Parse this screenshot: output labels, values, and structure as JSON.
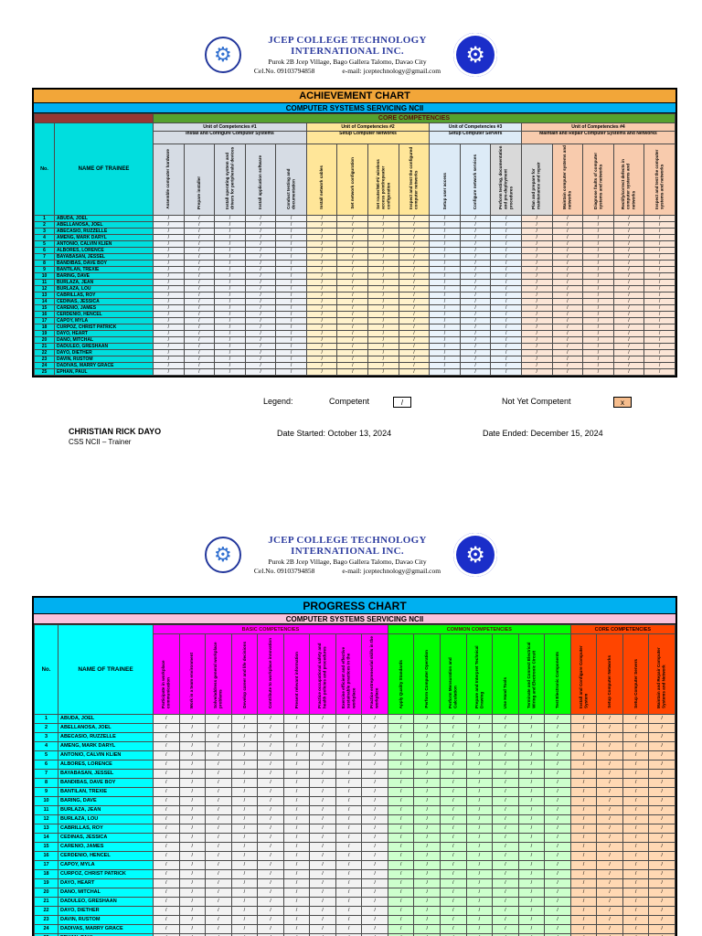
{
  "header": {
    "college_line1": "JCEP COLLEGE TECHNOLOGY",
    "college_line2": "INTERNATIONAL INC.",
    "address": "Purok 2B Jcep Village, Bago Gallera Talomo, Davao City",
    "phone": "Cel.No. 09103794858",
    "email": "e-mail: jceptechnology@gmail.com"
  },
  "trainees": [
    "ABUDA, JOEL",
    "ABELLANOSA, JOEL",
    "ABECASIO, RUZZELLE",
    "AMENG, MARK DARYL",
    "ANTONIO, CALVIN KLIEN",
    "ALBORES, LORENCE",
    "BAYABASAN, JESSEL",
    "BANDIBAS, DAVE BOY",
    "BANTILAN, TREXIE",
    "BARING, DAVE",
    "BURLAZA, JEAN",
    "BURLAZA, LOU",
    "CABRILLAS, ROY",
    "CEDINAS, JESSICA",
    "CARENIO, JAMES",
    "CERDENIO, HENCEL",
    "CAPOY, MYLA",
    "CURPOZ, CHRIST PATRICK",
    "DAYO, HEART",
    "DANO, MITCHAL",
    "DADULEO, GRESHAAN",
    "DAYO, DIETHER",
    "DAVIN, RUSTOM",
    "DADIVAS, MARRY GRACE",
    "EPHAN, PAUL"
  ],
  "achievement_chart": {
    "title": "ACHIEVEMENT CHART",
    "subtitle": "COMPUTER SYSTEMS SERVICING NCII",
    "section": "CORE COMPETENCIES",
    "no_header": "No.",
    "name_header": "NAME OF TRAINEE",
    "mark": "/",
    "title_bg": "#f2a639",
    "sub_bg": "#00b0f0",
    "section_bg": "#55a12e",
    "section_color": "#5c0a0a",
    "corner_bg": "#963634",
    "name_bg": "#00dede",
    "units": [
      {
        "label": "Unit of Competencies #1",
        "sublabel": "Install and Configure Computer Systems",
        "head_bg": "#d6dce4",
        "body_bg": "#eef1f6",
        "columns": [
          "Assemble computer hardware",
          "Prepare installer",
          "Install operating system and drivers for peripherals/ devices",
          "Install application software",
          "Conduct testing and documentation"
        ]
      },
      {
        "label": "Unit of Competencies #2",
        "sublabel": "Setup Computer Networks",
        "head_bg": "#ffe699",
        "body_bg": "#fff2cc",
        "columns": [
          "Install network cables",
          "Set network configuration",
          "Set router/Wi-Fi/ wireless access point/repeater configuration",
          "Inspect and test the configured computer networks"
        ]
      },
      {
        "label": "Unit of Competencies #3",
        "sublabel": "Setup Computer Servers",
        "head_bg": "#ddebf7",
        "body_bg": "#eaf3fb",
        "head_col_bgs": [
          "#ddebf7",
          "#ddebf7",
          "#d9d9d9"
        ],
        "columns": [
          "Setup user access",
          "Configure network services",
          "Perform testing, documentation and pre-deployment procedures"
        ]
      },
      {
        "label": "Unit of Competencies #4",
        "sublabel": "Maintain and Repair Computer Systems and Networks",
        "head_bg": "#f8cbad",
        "body_bg": "#fbe5d6",
        "head_col_bgs": [
          "#d9d9d9",
          "#f8cbad",
          "#f8cbad",
          "#f8cbad",
          "#f8cbad"
        ],
        "columns": [
          "Plan and prepare for maintenance and repair",
          "Maintain computer systems and networks",
          "Diagnose faults of computer systems and networks",
          "Rectify/correct defects in computer systems and networks",
          "Inspect and test the computer systems and networks"
        ]
      }
    ]
  },
  "legend": {
    "label": "Legend:",
    "competent_label": "Competent",
    "competent_mark": "/",
    "not_competent_label": "Not Yet Competent",
    "not_competent_mark": "x"
  },
  "signatory": {
    "name": "CHRISTIAN RICK DAYO",
    "role": "CSS NCII – Trainer",
    "date_started": "Date Started: October 13, 2024",
    "date_ended": "Date Ended: December 15, 2024"
  },
  "progress_chart": {
    "title": "PROGRESS CHART",
    "subtitle": "COMPUTER SYSTEMS SERVICING NCII",
    "no_header": "No.",
    "name_header": "NAME OF TRAINEE",
    "mark": "/",
    "title_bg": "#00b0f0",
    "sub_bg": "#f9c2dd",
    "name_bg": "#00ffff",
    "groups": [
      {
        "label": "BASIC COMPETENCIES",
        "head_bg": "#ff00ff",
        "body_bg": "#f2f2f2",
        "label_color": "#5c0a0a",
        "columns": [
          "Participate in workplace communication",
          "Work in a team environment",
          "Solve/address general workplace problems",
          "Develop career and life decisions",
          "Contribute to workplace innovation",
          "Present relevant information",
          "Practice occupational safety and health policies and procedures",
          "Exercise efficient and effective sustainable practices in the workplace",
          "Practice entrepreneurial skills in the workplace"
        ]
      },
      {
        "label": "COMMON COMPETENCIES",
        "head_bg": "#00ff00",
        "body_bg": "#ccffcc",
        "label_color": "#5c0a0a",
        "columns": [
          "Apply Quality Standards",
          "Perform Computer Operation",
          "Perform Mensuration and Calculation",
          "Prepare and Interpret Technical Drawing",
          "Use Hand Tools",
          "Terminate and Connect Electrical Wiring and Electronic Circuit",
          "Test Electronic Components"
        ]
      },
      {
        "label": "CORE COMPETENCIES",
        "head_bg": "#ff4500",
        "body_bg": "#ffd8b3",
        "label_color": "#200000",
        "columns": [
          "Install and Configure Computer System",
          "Setup Computer Networks",
          "Setup Computer Servers",
          "Maintain and Repair Computer Systems and Network"
        ]
      }
    ]
  }
}
